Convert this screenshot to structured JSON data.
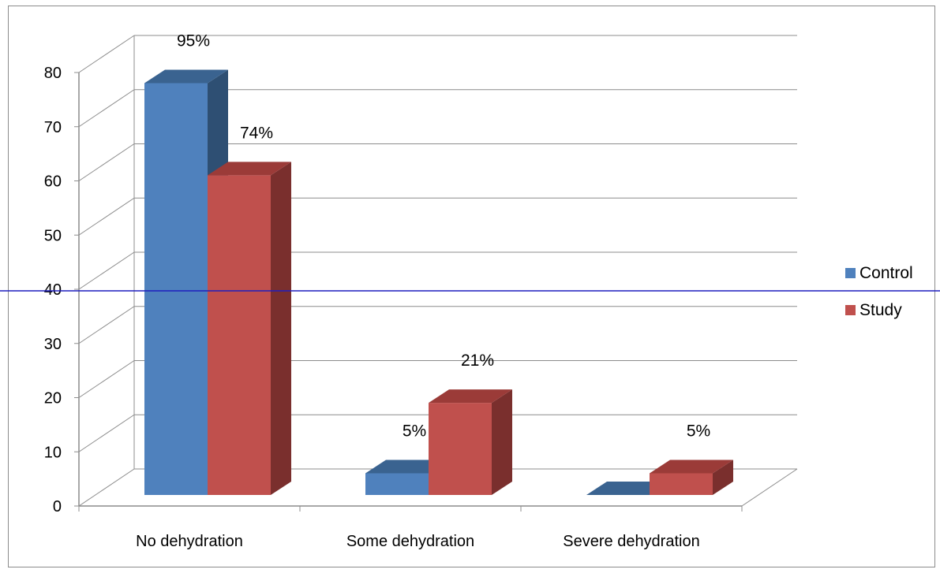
{
  "chart_data": {
    "type": "bar",
    "categories": [
      "No dehydration",
      "Some dehydration",
      "Severe dehydration"
    ],
    "series": [
      {
        "name": "Control",
        "values": [
          76,
          4,
          0
        ],
        "labels": [
          "95%",
          "5%",
          ""
        ],
        "color": "#4F81BD",
        "side_color": "#2E4F73",
        "top_color": "#3A6390"
      },
      {
        "name": "Study",
        "values": [
          59,
          17,
          4
        ],
        "labels": [
          "74%",
          "21%",
          "5%"
        ],
        "color": "#C0504D",
        "side_color": "#7A2F2D",
        "top_color": "#9B3B38"
      }
    ],
    "yticks": [
      0,
      10,
      20,
      30,
      40,
      50,
      60,
      70,
      80
    ],
    "ylim": [
      0,
      80
    ],
    "grid": true,
    "legend_position": "right",
    "overlay_line_color": "#1F1FBF"
  }
}
